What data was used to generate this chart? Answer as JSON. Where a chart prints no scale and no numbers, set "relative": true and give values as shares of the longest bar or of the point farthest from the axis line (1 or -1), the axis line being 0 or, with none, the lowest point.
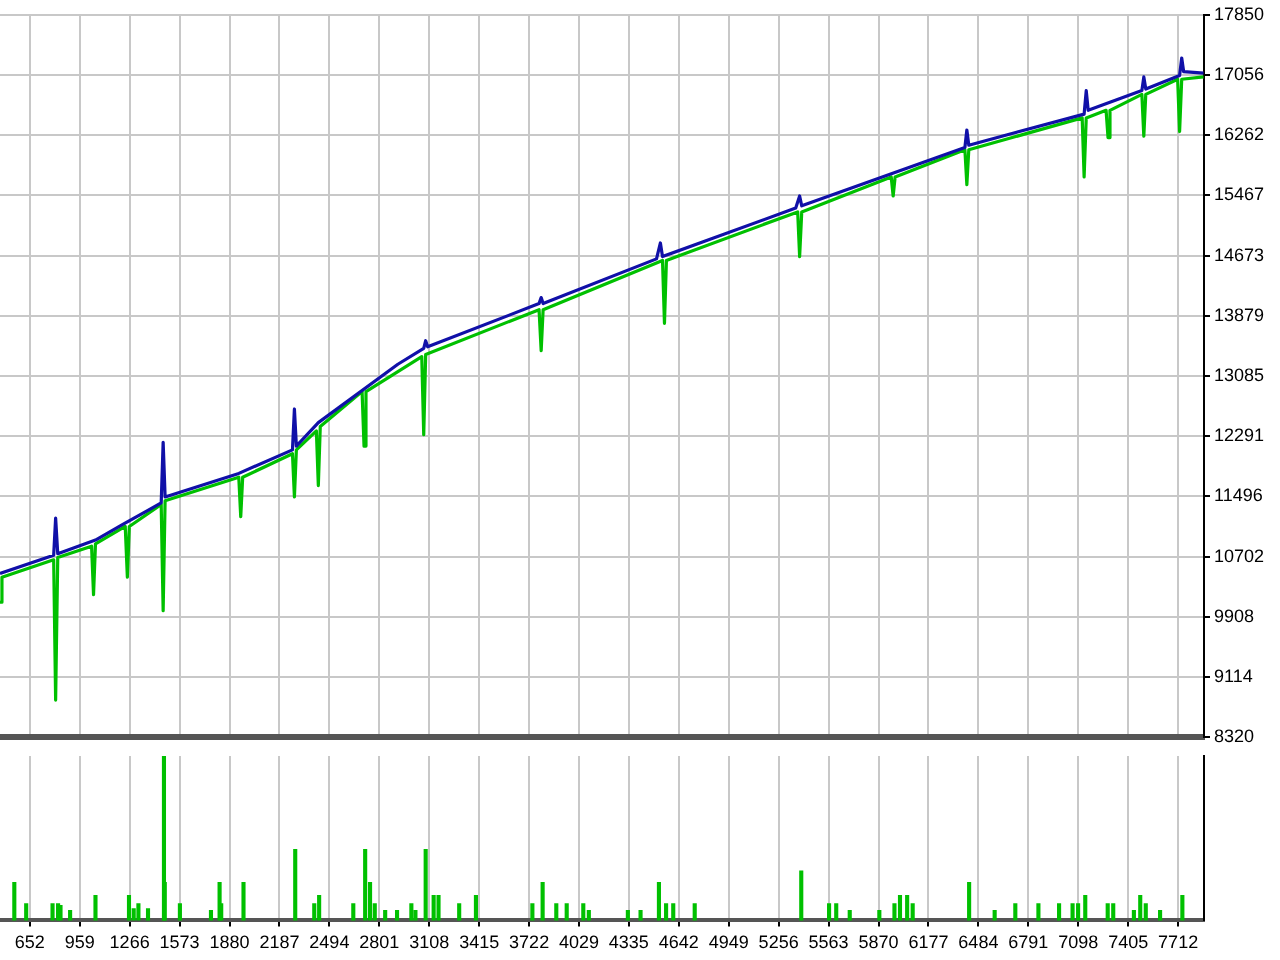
{
  "chart_data": [
    {
      "type": "line",
      "xlim": [
        469,
        7871
      ],
      "ylim": [
        8320,
        17850
      ],
      "xticks": [
        652,
        959,
        1266,
        1573,
        1880,
        2187,
        2494,
        2801,
        3108,
        3415,
        3722,
        4029,
        4335,
        4642,
        4949,
        5256,
        5563,
        5870,
        6177,
        6484,
        6791,
        7098,
        7405,
        7712
      ],
      "yticks": [
        8320,
        9114,
        9908,
        10702,
        11496,
        12291,
        13085,
        13879,
        14673,
        15467,
        16262,
        17056,
        17850
      ],
      "grid": true,
      "legend": false,
      "tick_labels": "y",
      "marker": "none",
      "series": [
        {
          "color": "#00c000",
          "x": [
            469,
            481,
            799,
            811,
            824,
            1032,
            1044,
            1056,
            1239,
            1252,
            1264,
            1460,
            1472,
            1484,
            1937,
            1949,
            1961,
            2267,
            2279,
            2291,
            2414,
            2426,
            2438,
            2695,
            2707,
            2719,
            3062,
            3074,
            3086,
            3783,
            3796,
            3808,
            4542,
            4554,
            4566,
            5373,
            5385,
            5398,
            5948,
            5960,
            5972,
            6401,
            6413,
            6425,
            7122,
            7134,
            7147,
            7269,
            7281,
            7293,
            7489,
            7501,
            7513,
            7709,
            7721,
            7734,
            7868
          ],
          "values": [
            10100,
            10430,
            10660,
            8810,
            10690,
            10840,
            10200,
            10870,
            11100,
            10430,
            11100,
            11390,
            9990,
            11440,
            11750,
            11230,
            11750,
            12060,
            11490,
            12110,
            12360,
            11640,
            12420,
            12880,
            12160,
            12880,
            13340,
            12310,
            13370,
            13960,
            13420,
            13960,
            14610,
            13780,
            14610,
            15250,
            14660,
            15250,
            15710,
            15460,
            15710,
            16070,
            15610,
            16070,
            16490,
            15710,
            16490,
            16590,
            16230,
            16590,
            16800,
            16250,
            16800,
            17000,
            16310,
            17000,
            17030
          ]
        },
        {
          "color": "#1010a8",
          "x": [
            469,
            799,
            811,
            824,
            1056,
            1227,
            1460,
            1472,
            1484,
            1937,
            2267,
            2279,
            2291,
            2426,
            2915,
            3074,
            3086,
            3098,
            3783,
            3796,
            3808,
            4505,
            4529,
            4542,
            5361,
            5385,
            5398,
            6401,
            6413,
            6425,
            7134,
            7147,
            7159,
            7489,
            7501,
            7513,
            7721,
            7734,
            7746,
            7868
          ],
          "values": [
            10480,
            10720,
            11210,
            10740,
            10920,
            11130,
            11410,
            12210,
            11490,
            11800,
            12110,
            12650,
            12160,
            12470,
            13240,
            13450,
            13550,
            13470,
            14040,
            14120,
            14040,
            14630,
            14840,
            14660,
            15300,
            15460,
            15330,
            16100,
            16330,
            16130,
            16540,
            16850,
            16590,
            16850,
            17030,
            16870,
            17050,
            17280,
            17100,
            17080
          ]
        }
      ]
    },
    {
      "type": "bar",
      "relative": true,
      "xlim": [
        469,
        7871
      ],
      "xticks": [
        652,
        959,
        1266,
        1573,
        1880,
        2187,
        2494,
        2801,
        3108,
        3415,
        3722,
        4029,
        4335,
        4642,
        4949,
        5256,
        5563,
        5870,
        6177,
        6484,
        6791,
        7098,
        7405,
        7712
      ],
      "grid": "x",
      "legend": false,
      "tick_labels": "x",
      "color": "#00c000",
      "x": [
        557,
        630,
        792,
        826,
        841,
        900,
        1056,
        1262,
        1291,
        1320,
        1379,
        1477,
        1482,
        1575,
        1766,
        1819,
        1829,
        1966,
        2284,
        2401,
        2431,
        2641,
        2714,
        2744,
        2773,
        2837,
        2910,
        2998,
        3023,
        3086,
        3135,
        3165,
        3292,
        3395,
        3742,
        3805,
        3889,
        3953,
        4055,
        4089,
        4329,
        4407,
        4520,
        4564,
        4608,
        4740,
        5395,
        5566,
        5610,
        5693,
        5875,
        5968,
        6002,
        6046,
        6080,
        6427,
        6584,
        6711,
        6853,
        6980,
        7063,
        7097,
        7141,
        7279,
        7313,
        7440,
        7479,
        7513,
        7601,
        7738
      ],
      "values": [
        0.23,
        0.1,
        0.1,
        0.1,
        0.09,
        0.06,
        0.15,
        0.15,
        0.07,
        0.1,
        0.07,
        1,
        0.23,
        0.1,
        0.06,
        0.23,
        0.1,
        0.23,
        0.43,
        0.1,
        0.15,
        0.1,
        0.43,
        0.23,
        0.1,
        0.06,
        0.06,
        0.1,
        0.06,
        0.43,
        0.15,
        0.15,
        0.1,
        0.15,
        0.1,
        0.23,
        0.1,
        0.1,
        0.1,
        0.06,
        0.06,
        0.06,
        0.23,
        0.1,
        0.1,
        0.1,
        0.3,
        0.1,
        0.1,
        0.06,
        0.06,
        0.1,
        0.15,
        0.15,
        0.1,
        0.23,
        0.06,
        0.1,
        0.1,
        0.1,
        0.1,
        0.1,
        0.15,
        0.1,
        0.1,
        0.06,
        0.15,
        0.1,
        0.06,
        0.15
      ]
    }
  ]
}
